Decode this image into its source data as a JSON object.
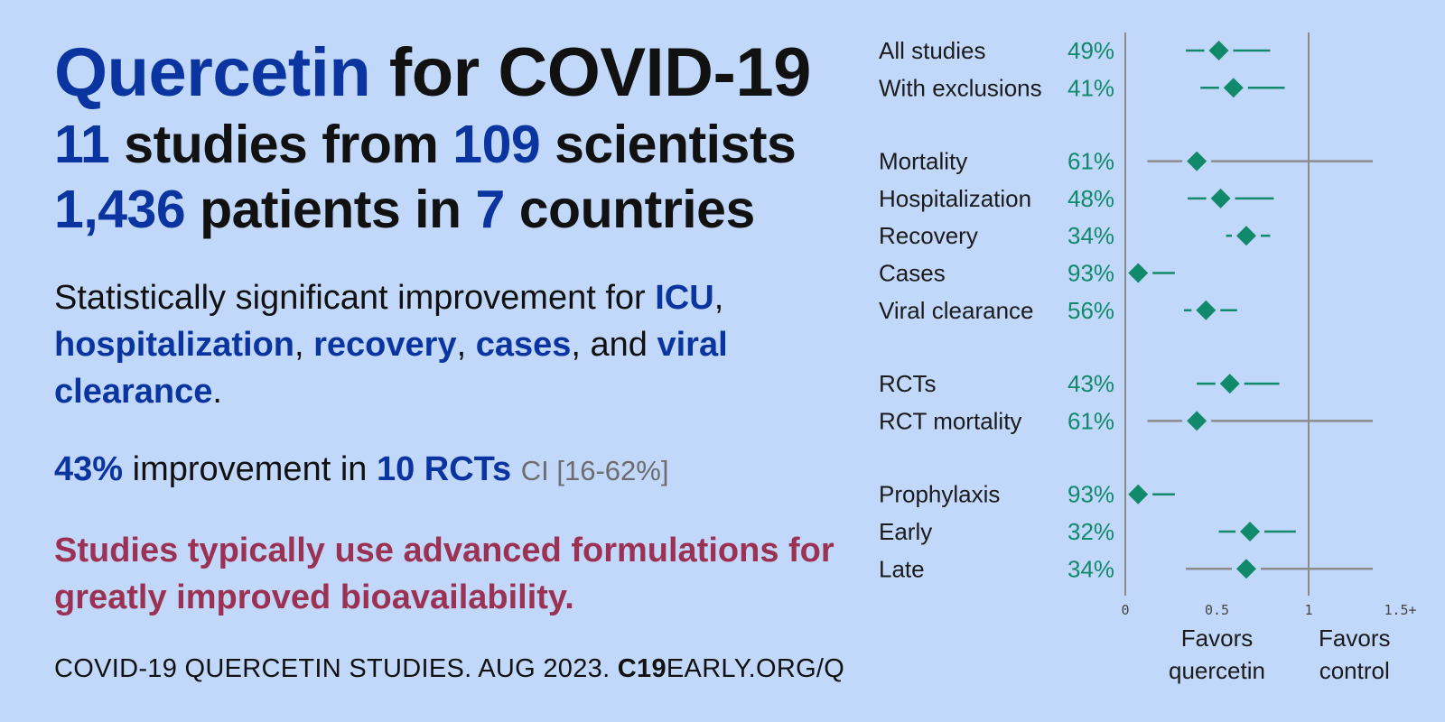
{
  "headline": {
    "drug": "Quercetin",
    "for_text": "for COVID-19",
    "studies_count": "11",
    "studies_text": "studies from",
    "scientists_count": "109",
    "scientists_text": "scientists",
    "patients_count": "1,436",
    "patients_text": "patients in",
    "countries_count": "7",
    "countries_text": "countries"
  },
  "summary": {
    "intro": "Statistically significant improvement for",
    "term1": "ICU",
    "sep1": ",",
    "term2": "hospitalization",
    "sep2": ",",
    "term3": "recovery",
    "sep3": ",",
    "term4": "cases",
    "sep4": ", and",
    "term5": "viral clearance",
    "end": "."
  },
  "rct_line": {
    "percent": "43%",
    "text": "improvement in",
    "rct_count": "10 RCTs",
    "ci": "CI [16-62%]"
  },
  "note": "Studies typically use advanced formulations for greatly improved bioavailability.",
  "footer": {
    "prefix": "COVID-19 QUERCETIN STUDIES. AUG 2023.",
    "site_bold": "C19",
    "site_rest": "EARLY.ORG/Q"
  },
  "colors": {
    "background": "#c1d8fb",
    "accent_blue": "#0a34a0",
    "note_red": "#9b3254",
    "green": "#11896b",
    "gray_line": "#8c8c8c"
  },
  "chart_data": {
    "type": "forest",
    "x_ticks": [
      "0",
      "0.5",
      "1",
      "1.5+"
    ],
    "x_tick_values": [
      0,
      0.5,
      1,
      1.5
    ],
    "xlim": [
      0,
      1.5
    ],
    "reference_lines": [
      0,
      1
    ],
    "favors_left": [
      "Favors",
      "quercetin"
    ],
    "favors_right": [
      "Favors",
      "control"
    ],
    "groups": [
      {
        "rows": [
          {
            "label": "All studies",
            "pct": "49%",
            "estimate": 0.51,
            "lower": 0.33,
            "upper": 0.79,
            "significant": true
          },
          {
            "label": "With exclusions",
            "pct": "41%",
            "estimate": 0.59,
            "lower": 0.41,
            "upper": 0.87,
            "significant": true
          }
        ]
      },
      {
        "rows": [
          {
            "label": "Mortality",
            "pct": "61%",
            "estimate": 0.39,
            "lower": 0.12,
            "upper": 1.35,
            "significant": false
          },
          {
            "label": "Hospitalization",
            "pct": "48%",
            "estimate": 0.52,
            "lower": 0.34,
            "upper": 0.81,
            "significant": true
          },
          {
            "label": "Recovery",
            "pct": "34%",
            "estimate": 0.66,
            "lower": 0.55,
            "upper": 0.79,
            "significant": true
          },
          {
            "label": "Cases",
            "pct": "93%",
            "estimate": 0.07,
            "lower": 0.03,
            "upper": 0.27,
            "significant": true
          },
          {
            "label": "Viral clearance",
            "pct": "56%",
            "estimate": 0.44,
            "lower": 0.32,
            "upper": 0.61,
            "significant": true
          }
        ]
      },
      {
        "rows": [
          {
            "label": "RCTs",
            "pct": "43%",
            "estimate": 0.57,
            "lower": 0.39,
            "upper": 0.84,
            "significant": true
          },
          {
            "label": "RCT mortality",
            "pct": "61%",
            "estimate": 0.39,
            "lower": 0.12,
            "upper": 1.35,
            "significant": false
          }
        ]
      },
      {
        "rows": [
          {
            "label": "Prophylaxis",
            "pct": "93%",
            "estimate": 0.07,
            "lower": 0.03,
            "upper": 0.27,
            "significant": true
          },
          {
            "label": "Early",
            "pct": "32%",
            "estimate": 0.68,
            "lower": 0.51,
            "upper": 0.93,
            "significant": true
          },
          {
            "label": "Late",
            "pct": "34%",
            "estimate": 0.66,
            "lower": 0.33,
            "upper": 1.35,
            "significant": false
          }
        ]
      }
    ]
  }
}
